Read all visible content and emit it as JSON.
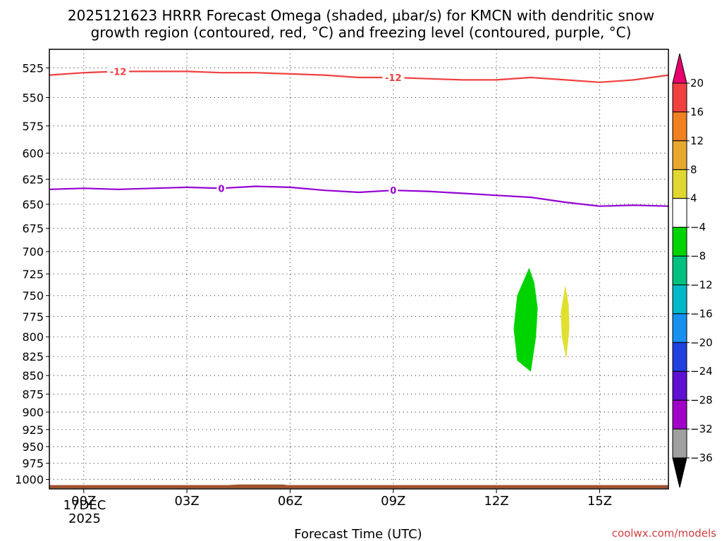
{
  "colors": {
    "dendritic_contour": "#f04040",
    "freezing_contour": "#9400d3",
    "terrain": "#a0522d",
    "green_region": "#00d400",
    "yellow_region": "#e0e030",
    "credit": "#d04040"
  },
  "chart_data": {
    "type": "time-height",
    "title_line1": "2025121623 HRRR Forecast Omega (shaded, μbar/s) for KMCN with dendritic snow",
    "title_line2": "growth region (contoured, red, °C) and freezing level (contoured, purple, °C)",
    "xlabel": "Forecast Time (UTC)",
    "date_label_day": "17DEC",
    "date_label_year": "2025",
    "credit": "coolwx.com/models",
    "x_range_hours": [
      -1,
      17
    ],
    "x_ticks": [
      {
        "hour": 0,
        "label": "00Z"
      },
      {
        "hour": 3,
        "label": "03Z"
      },
      {
        "hour": 6,
        "label": "06Z"
      },
      {
        "hour": 9,
        "label": "09Z"
      },
      {
        "hour": 12,
        "label": "12Z"
      },
      {
        "hour": 15,
        "label": "15Z"
      }
    ],
    "y_range_hpa": [
      1015,
      510
    ],
    "y_ticks": [
      525,
      550,
      575,
      600,
      625,
      650,
      675,
      700,
      725,
      750,
      775,
      800,
      825,
      850,
      875,
      900,
      925,
      950,
      975,
      1000
    ],
    "series": [
      {
        "name": "dendritic snow growth -12C",
        "label": "-12",
        "label_hours": [
          1,
          9
        ],
        "points": [
          {
            "hour": -1,
            "hpa": 531
          },
          {
            "hour": 0,
            "hpa": 529
          },
          {
            "hour": 1,
            "hpa": 528
          },
          {
            "hour": 2,
            "hpa": 528
          },
          {
            "hour": 3,
            "hpa": 528
          },
          {
            "hour": 4,
            "hpa": 529
          },
          {
            "hour": 5,
            "hpa": 529
          },
          {
            "hour": 6,
            "hpa": 530
          },
          {
            "hour": 7,
            "hpa": 531
          },
          {
            "hour": 8,
            "hpa": 533
          },
          {
            "hour": 9,
            "hpa": 533
          },
          {
            "hour": 10,
            "hpa": 534
          },
          {
            "hour": 11,
            "hpa": 535
          },
          {
            "hour": 12,
            "hpa": 535
          },
          {
            "hour": 13,
            "hpa": 533
          },
          {
            "hour": 14,
            "hpa": 535
          },
          {
            "hour": 15,
            "hpa": 537
          },
          {
            "hour": 16,
            "hpa": 535
          },
          {
            "hour": 17,
            "hpa": 531
          }
        ]
      },
      {
        "name": "freezing level 0C",
        "label": "0",
        "label_hours": [
          4,
          9
        ],
        "points": [
          {
            "hour": -1,
            "hpa": 635
          },
          {
            "hour": 0,
            "hpa": 634
          },
          {
            "hour": 1,
            "hpa": 635
          },
          {
            "hour": 2,
            "hpa": 634
          },
          {
            "hour": 3,
            "hpa": 633
          },
          {
            "hour": 4,
            "hpa": 634
          },
          {
            "hour": 5,
            "hpa": 632
          },
          {
            "hour": 6,
            "hpa": 633
          },
          {
            "hour": 7,
            "hpa": 636
          },
          {
            "hour": 8,
            "hpa": 638
          },
          {
            "hour": 9,
            "hpa": 636
          },
          {
            "hour": 10,
            "hpa": 637
          },
          {
            "hour": 11,
            "hpa": 639
          },
          {
            "hour": 12,
            "hpa": 641
          },
          {
            "hour": 13,
            "hpa": 643
          },
          {
            "hour": 14,
            "hpa": 648
          },
          {
            "hour": 15,
            "hpa": 652
          },
          {
            "hour": 16,
            "hpa": 651
          },
          {
            "hour": 17,
            "hpa": 652
          }
        ]
      }
    ],
    "omega_regions": [
      {
        "name": "omega -8 to -4 (green)",
        "points": [
          {
            "hour": 12.95,
            "hpa": 718
          },
          {
            "hour": 13.1,
            "hpa": 735
          },
          {
            "hour": 13.2,
            "hpa": 765
          },
          {
            "hour": 13.15,
            "hpa": 800
          },
          {
            "hour": 13.0,
            "hpa": 845
          },
          {
            "hour": 12.6,
            "hpa": 830
          },
          {
            "hour": 12.5,
            "hpa": 790
          },
          {
            "hour": 12.6,
            "hpa": 750
          }
        ]
      },
      {
        "name": "omega 4 to 8 (yellow)",
        "points": [
          {
            "hour": 14.0,
            "hpa": 738
          },
          {
            "hour": 14.1,
            "hpa": 760
          },
          {
            "hour": 14.12,
            "hpa": 790
          },
          {
            "hour": 14.03,
            "hpa": 828
          },
          {
            "hour": 13.9,
            "hpa": 800
          },
          {
            "hour": 13.87,
            "hpa": 770
          }
        ]
      },
      {
        "name": "terrain surface",
        "points": [
          {
            "hour": -1,
            "hpa": 1009
          },
          {
            "hour": 4.2,
            "hpa": 1009
          },
          {
            "hour": 4.5,
            "hpa": 1008
          },
          {
            "hour": 5.8,
            "hpa": 1008
          },
          {
            "hour": 5.9,
            "hpa": 1009
          },
          {
            "hour": 17,
            "hpa": 1009
          },
          {
            "hour": 17,
            "hpa": 1014
          },
          {
            "hour": -1,
            "hpa": 1014
          }
        ]
      }
    ],
    "colorbar": {
      "labels": [
        "20",
        "16",
        "12",
        "8",
        "4",
        "−4",
        "−8",
        "−12",
        "−16",
        "−20",
        "−24",
        "−28",
        "−32",
        "−36"
      ],
      "colors": [
        "#e8006e",
        "#f04040",
        "#f08020",
        "#e8a830",
        "#e0d830",
        "#ffffff",
        "#00d400",
        "#00c080",
        "#00b8c8",
        "#1890f0",
        "#2040e0",
        "#6010d0",
        "#a000c8",
        "#a0a0a0",
        "#000000"
      ]
    }
  }
}
